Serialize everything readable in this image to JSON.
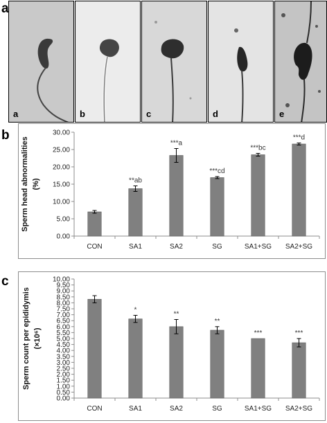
{
  "figure": {
    "panel_a_letter": "a",
    "panel_b_letter": "b",
    "panel_c_letter": "c"
  },
  "photos": [
    {
      "label": "a",
      "shape": "normal-hook"
    },
    {
      "label": "b",
      "shape": "amorphous"
    },
    {
      "label": "c",
      "shape": "amorphous-round"
    },
    {
      "label": "d",
      "shape": "banana"
    },
    {
      "label": "e",
      "shape": "hook-large"
    }
  ],
  "colors": {
    "bar": "#808080",
    "bar_edge": "#5e5e5e",
    "axis": "#8c8c8c",
    "frame": "#8c8c8c"
  },
  "chart_data": [
    {
      "type": "bar",
      "panel": "b",
      "categories": [
        "CON",
        "SA1",
        "SA2",
        "SG",
        "SA1+SG",
        "SA2+SG"
      ],
      "values": [
        7.0,
        13.7,
        23.3,
        16.9,
        23.5,
        26.6
      ],
      "errors": [
        0.4,
        0.8,
        2.0,
        0.3,
        0.4,
        0.3
      ],
      "annotations": [
        "",
        "**ab",
        "***a",
        "***cd",
        "***bc",
        "***d"
      ],
      "ylabel_line1": "Sperm head abnormalities",
      "ylabel_line2": "(%)",
      "ylim": [
        0,
        30
      ],
      "yticks": [
        "0.00",
        "5.00",
        "10.00",
        "15.00",
        "20.00",
        "25.00",
        "30.00"
      ],
      "grid": false
    },
    {
      "type": "bar",
      "panel": "c",
      "categories": [
        "CON",
        "SA1",
        "SA2",
        "SG",
        "SA1+SG",
        "SA2+SG"
      ],
      "values": [
        8.3,
        6.65,
        6.0,
        5.7,
        5.0,
        4.65
      ],
      "errors": [
        0.3,
        0.3,
        0.6,
        0.3,
        0.0,
        0.35
      ],
      "annotations": [
        "",
        "*",
        "**",
        "**",
        "***",
        "***"
      ],
      "ylabel_line1": "Sperm count per epididymis",
      "ylabel_line2": "(×10⁶)",
      "ylim": [
        0,
        10
      ],
      "yticks": [
        "0.00",
        "0.50",
        "1.00",
        "1.50",
        "2.00",
        "2.50",
        "3.00",
        "3.50",
        "4.00",
        "4.50",
        "5.00",
        "5.50",
        "6.00",
        "6.50",
        "7.00",
        "7.50",
        "8.00",
        "8.50",
        "9.00",
        "9.50",
        "10.00"
      ],
      "grid": false
    }
  ]
}
